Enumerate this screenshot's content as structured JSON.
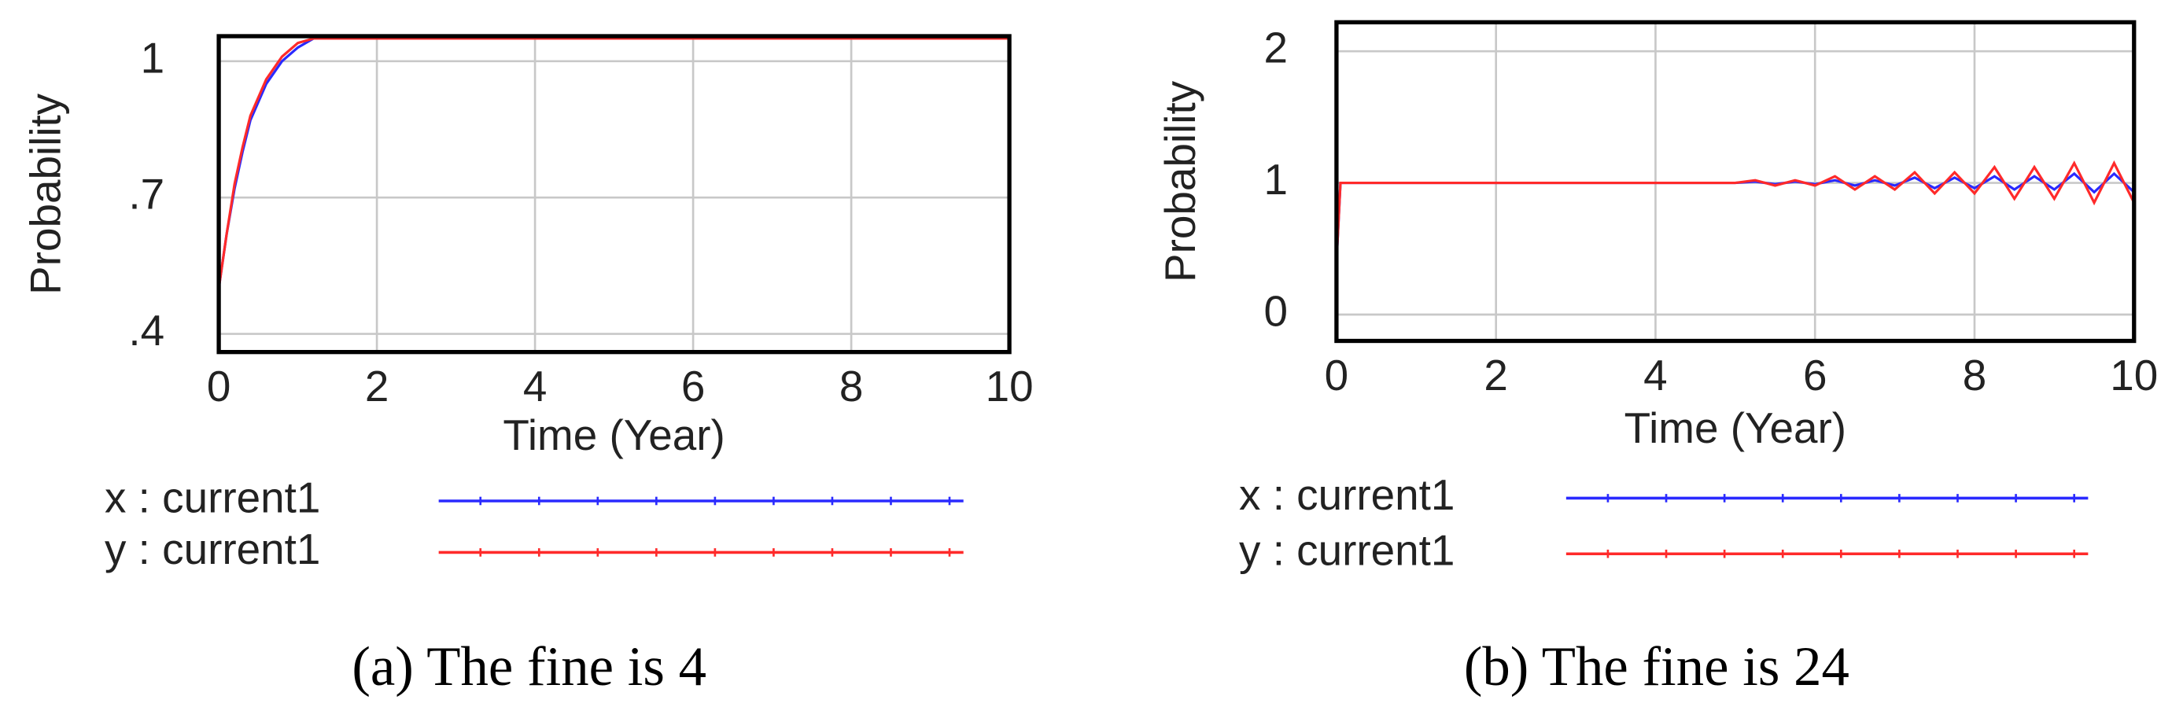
{
  "chart_data": [
    {
      "type": "line",
      "caption": "(a) The fine is 4",
      "ylabel": "Probability",
      "xlabel": "Time (Year)",
      "xlim": [
        0,
        10
      ],
      "xticks": [
        0,
        2,
        4,
        6,
        8,
        10
      ],
      "ylim": [
        0.36,
        1.055
      ],
      "yticks": [
        {
          "value": 0.4,
          "label": ".4"
        },
        {
          "value": 0.7,
          "label": ".7"
        },
        {
          "value": 1,
          "label": "1"
        }
      ],
      "grid": true,
      "legend": "bottom",
      "x": [
        0,
        0.1,
        0.2,
        0.3,
        0.4,
        0.6,
        0.8,
        1,
        1.2,
        2,
        3,
        4,
        5,
        6,
        7,
        8,
        9,
        10
      ],
      "series": [
        {
          "name": "x : current1",
          "color": "#2a2aff",
          "values": [
            0.5,
            0.62,
            0.72,
            0.8,
            0.87,
            0.95,
            1.0,
            1.03,
            1.05,
            1.05,
            1.05,
            1.05,
            1.05,
            1.05,
            1.05,
            1.05,
            1.05,
            1.05
          ]
        },
        {
          "name": "y : current1",
          "color": "#ff2a2a",
          "values": [
            0.5,
            0.62,
            0.73,
            0.81,
            0.88,
            0.96,
            1.01,
            1.04,
            1.05,
            1.05,
            1.05,
            1.05,
            1.05,
            1.05,
            1.05,
            1.05,
            1.05,
            1.05
          ]
        }
      ]
    },
    {
      "type": "line",
      "caption": "(b) The fine is 24",
      "ylabel": "Probability",
      "xlabel": "Time (Year)",
      "xlim": [
        0,
        10
      ],
      "xticks": [
        0,
        2,
        4,
        6,
        8,
        10
      ],
      "ylim": [
        -0.2,
        2.22
      ],
      "yticks": [
        0,
        1,
        2
      ],
      "grid": true,
      "legend": "bottom",
      "x": [
        0,
        0.05,
        0.25,
        0.5,
        0.75,
        1,
        1.25,
        1.5,
        1.75,
        2,
        2.25,
        2.5,
        2.75,
        3,
        3.25,
        3.5,
        3.75,
        4,
        4.25,
        4.5,
        4.75,
        5,
        5.25,
        5.5,
        5.75,
        6,
        6.25,
        6.5,
        6.75,
        7,
        7.25,
        7.5,
        7.75,
        8,
        8.25,
        8.5,
        8.75,
        9,
        9.25,
        9.5,
        9.75,
        10
      ],
      "series": [
        {
          "name": "x : current1",
          "color": "#2a2aff",
          "values": [
            0.4,
            1.0,
            1,
            1,
            1,
            1,
            1,
            1,
            1,
            1,
            1,
            1,
            1,
            1,
            1,
            1,
            1,
            1,
            1,
            1,
            1,
            1,
            1.01,
            0.99,
            1.01,
            0.99,
            1.02,
            0.98,
            1.02,
            0.98,
            1.04,
            0.96,
            1.04,
            0.96,
            1.05,
            0.95,
            1.05,
            0.95,
            1.07,
            0.93,
            1.07,
            0.93
          ]
        },
        {
          "name": "y : current1",
          "color": "#ff2a2a",
          "values": [
            0.4,
            1.0,
            1,
            1,
            1,
            1,
            1,
            1,
            1,
            1,
            1,
            1,
            1,
            1,
            1,
            1,
            1,
            1,
            1,
            1,
            1,
            1,
            1.02,
            0.98,
            1.02,
            0.98,
            1.05,
            0.95,
            1.05,
            0.95,
            1.08,
            0.92,
            1.08,
            0.92,
            1.12,
            0.88,
            1.12,
            0.88,
            1.15,
            0.85,
            1.15,
            0.85
          ]
        }
      ]
    }
  ]
}
